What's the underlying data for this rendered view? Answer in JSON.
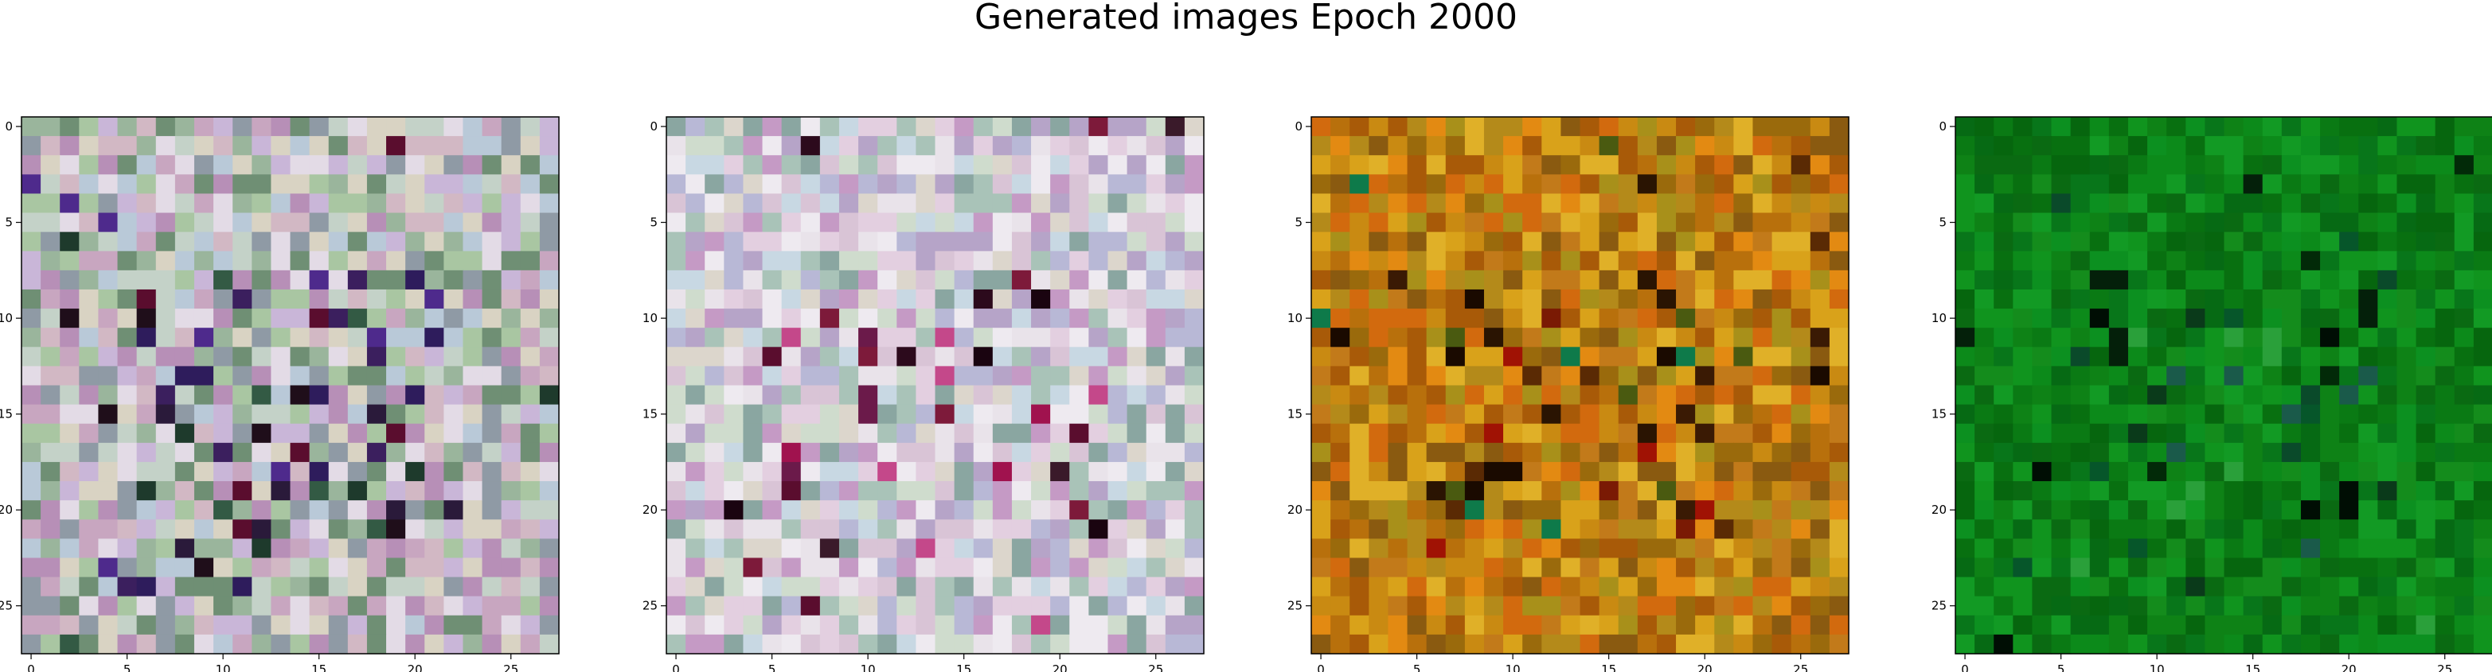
{
  "figure": {
    "title": "Generated images Epoch 2000"
  },
  "chart_data": [
    {
      "type": "heatmap",
      "title": "",
      "palette": [
        "#d2b8c4",
        "#c4d2c8",
        "#a9c6a2",
        "#c9b6d8",
        "#e3dbe6",
        "#8f9aa5",
        "#b78fb7",
        "#d9d3c3",
        "#9ab59c",
        "#6f8f74",
        "#c8a6c0",
        "#b9c9d8"
      ],
      "accents": [
        "#1e3a2c",
        "#2a1a3a",
        "#3b1f5e",
        "#4e2a8c",
        "#5a0d2e",
        "#2e1c5c",
        "#1f0e1a",
        "#335a44"
      ],
      "xlim": [
        -0.5,
        27.5
      ],
      "ylim": [
        27.5,
        -0.5
      ],
      "xticks": [
        "0",
        "5",
        "10",
        "15",
        "20",
        "25"
      ],
      "yticks": [
        "0",
        "5",
        "10",
        "15",
        "20",
        "25"
      ]
    },
    {
      "type": "heatmap",
      "title": "",
      "palette": [
        "#e3cfe0",
        "#cfdccd",
        "#d9c4d6",
        "#c8d8e3",
        "#e9e3ea",
        "#b6a4c8",
        "#a9c3b8",
        "#dcd6cc",
        "#c59ac5",
        "#8aa6a1",
        "#eeeaf0",
        "#b8b8d6"
      ],
      "accents": [
        "#1a0410",
        "#2c0a1c",
        "#6b1a4a",
        "#5a0d2e",
        "#a0124e",
        "#7d1a3a",
        "#3a1a2a",
        "#c4488a"
      ],
      "xlim": [
        -0.5,
        27.5
      ],
      "ylim": [
        27.5,
        -0.5
      ],
      "xticks": [
        "0",
        "5",
        "10",
        "15",
        "20",
        "25"
      ],
      "yticks": [
        "0",
        "5",
        "10",
        "15",
        "20",
        "25"
      ]
    },
    {
      "type": "heatmap",
      "title": "",
      "palette": [
        "#c98a12",
        "#b8700c",
        "#d9a21a",
        "#a85a08",
        "#e0b028",
        "#9a6a0c",
        "#c27a1a",
        "#e38a12",
        "#8a5a10",
        "#b48a1a",
        "#d26a0e",
        "#a8901a"
      ],
      "accents": [
        "#3a1a04",
        "#2a1402",
        "#7a1a04",
        "#a01204",
        "#1a0a00",
        "#4a5a10",
        "#0e7a4a",
        "#5a2a04"
      ],
      "xlim": [
        -0.5,
        27.5
      ],
      "ylim": [
        27.5,
        -0.5
      ],
      "xticks": [
        "0",
        "5",
        "10",
        "15",
        "20",
        "25"
      ],
      "yticks": [
        "0",
        "5",
        "10",
        "15",
        "20",
        "25"
      ]
    },
    {
      "type": "heatmap",
      "title": "",
      "palette": [
        "#0a7a14",
        "#0c8a1a",
        "#087010",
        "#10941e",
        "#06660e",
        "#0e8216",
        "#129a24",
        "#0a6a12",
        "#148c1c",
        "#08761a",
        "#0c9020",
        "#066a14"
      ],
      "accents": [
        "#022a08",
        "#04200a",
        "#0a4a2a",
        "#1a5a4a",
        "#000e04",
        "#0a3a1a",
        "#2aa03a",
        "#06562a"
      ],
      "xlim": [
        -0.5,
        27.5
      ],
      "ylim": [
        27.5,
        -0.5
      ],
      "xticks": [
        "0",
        "5",
        "10",
        "15",
        "20",
        "25"
      ],
      "yticks": [
        "0",
        "5",
        "10",
        "15",
        "20",
        "25"
      ]
    }
  ]
}
